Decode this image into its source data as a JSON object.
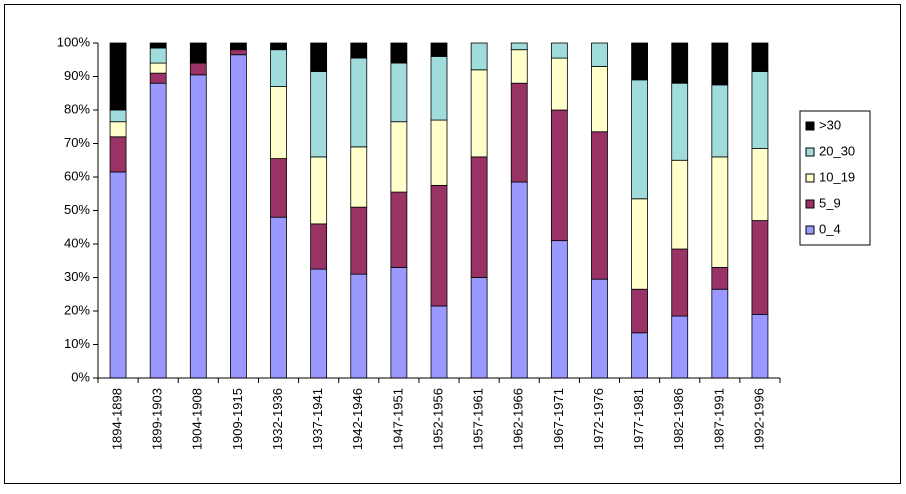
{
  "chart_data": {
    "type": "stacked_bar",
    "categories": [
      "1894-1898",
      "1899-1903",
      "1904-1908",
      "1909-1915",
      "1932-1936",
      "1937-1941",
      "1942-1946",
      "1947-1951",
      "1952-1956",
      "1957-1961",
      "1962-1966",
      "1967-1971",
      "1972-1976",
      "1977-1981",
      "1982-1986",
      "1987-1991",
      "1992-1996"
    ],
    "series": [
      {
        "name": "0_4",
        "color": "#9999ff",
        "values": [
          61.5,
          88,
          90.5,
          96.5,
          48,
          32.5,
          31,
          33,
          21.5,
          30,
          58.5,
          41,
          29.5,
          13.5,
          18.5,
          26.5,
          19
        ]
      },
      {
        "name": "5_9",
        "color": "#993366",
        "values": [
          10.5,
          3,
          3.5,
          1.5,
          17.5,
          13.5,
          20,
          22.5,
          36,
          36,
          29.5,
          39,
          44,
          13,
          20,
          6.5,
          28
        ]
      },
      {
        "name": "10_19",
        "color": "#ffffcc",
        "values": [
          4.5,
          3,
          0,
          0,
          21.5,
          20,
          18,
          21,
          19.5,
          26,
          10,
          15.5,
          19.5,
          27,
          26.5,
          33,
          21.5
        ]
      },
      {
        "name": "20_30",
        "color": "#a0dcdc",
        "values": [
          3.5,
          4.5,
          0,
          0,
          11,
          25.5,
          26.5,
          17.5,
          19,
          8,
          2,
          4.5,
          7,
          35.5,
          23,
          21.5,
          23
        ]
      },
      {
        "name": ">30",
        "color": "#000000",
        "values": [
          20,
          1.5,
          6,
          2,
          2,
          8.5,
          4.5,
          6,
          4,
          0,
          0,
          0,
          0,
          11,
          12,
          12.5,
          8.5
        ]
      }
    ],
    "ylim": [
      0,
      100
    ],
    "yticks": [
      {
        "value": 0,
        "label": "0%"
      },
      {
        "value": 10,
        "label": "10%"
      },
      {
        "value": 20,
        "label": "20%"
      },
      {
        "value": 30,
        "label": "30%"
      },
      {
        "value": 40,
        "label": "40%"
      },
      {
        "value": 50,
        "label": "50%"
      },
      {
        "value": 60,
        "label": "60%"
      },
      {
        "value": 70,
        "label": "70%"
      },
      {
        "value": 80,
        "label": "80%"
      },
      {
        "value": 90,
        "label": "90%"
      },
      {
        "value": 100,
        "label": "100%"
      }
    ],
    "legend": "right"
  }
}
